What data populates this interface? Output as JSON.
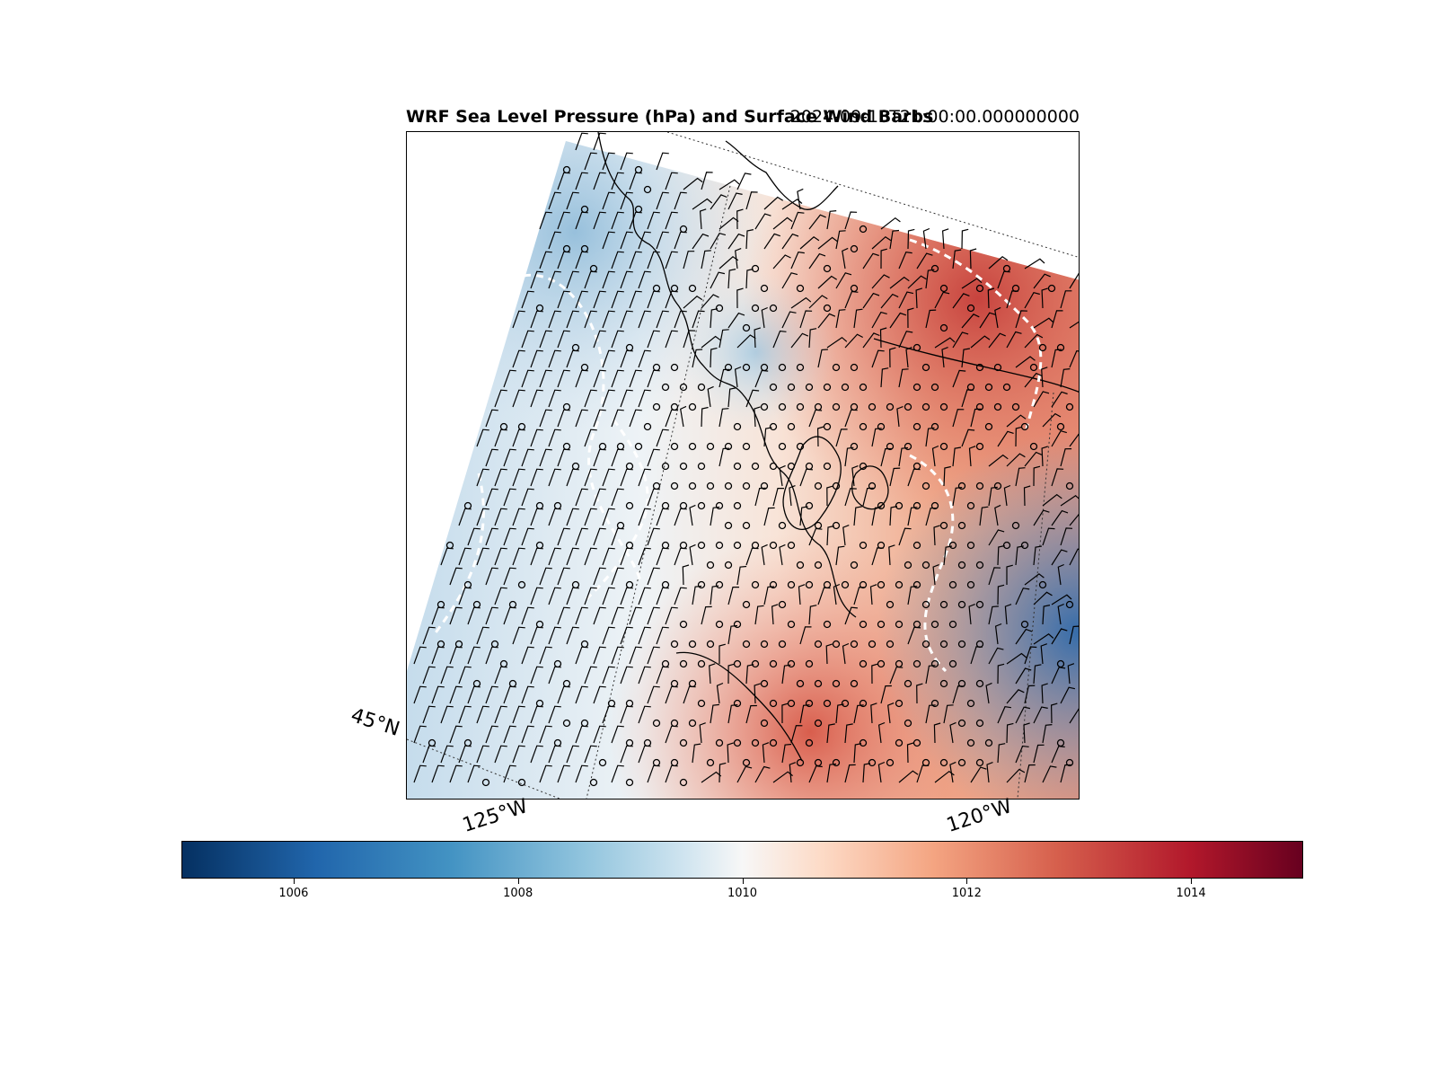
{
  "title": {
    "main": "WRF Sea Level Pressure (hPa) and Surface Wind Barbs",
    "time": "2024-09-18T21:00:00.000000000"
  },
  "map": {
    "graticule_labels": {
      "lat_45": "45°N",
      "lon_125": "125°W",
      "lon_120": "120°W"
    },
    "field": "sea level pressure",
    "overlays": [
      "coastlines",
      "state borders",
      "wind barbs",
      "dashed white contours"
    ]
  },
  "colorbar": {
    "colormap": "RdBu_r",
    "min": 1005,
    "max": 1015,
    "ticks": [
      "1006",
      "1008",
      "1010",
      "1012",
      "1014"
    ],
    "colors": {
      "low": "#053061",
      "mid": "#f7f7f7",
      "high": "#67001f"
    }
  }
}
